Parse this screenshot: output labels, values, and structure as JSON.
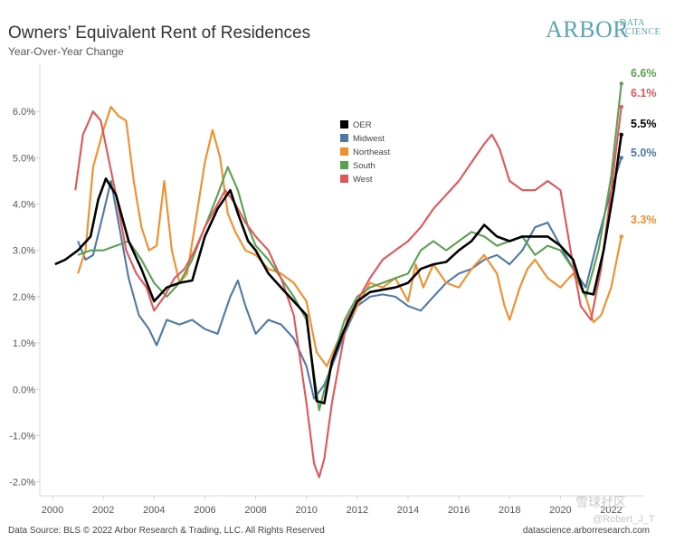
{
  "header": {
    "title": "Owners’ Equivalent Rent of Residences",
    "subtitle": "Year-Over-Year Change"
  },
  "logo": {
    "main": "ARBOR",
    "sub1": "DATA",
    "sub2": "SCIENCE"
  },
  "footer": {
    "source": "Data Source: BLS © 2022 Arbor Research & Trading, LLC. All Rights Reserved",
    "site": "datascience.arborresearch.com"
  },
  "watermark": {
    "line1": "雪球社区",
    "line2": "@Robert_J_T"
  },
  "colors": {
    "OER": "#000000",
    "Midwest": "#4e79a7",
    "Northeast": "#f28e2b",
    "South": "#59a14f",
    "West": "#e15759"
  },
  "chart_data": {
    "type": "line",
    "title": "Owners’ Equivalent Rent of Residences",
    "subtitle": "Year-Over-Year Change",
    "xlabel": "",
    "ylabel": "",
    "xlim": [
      1999.5,
      2023.3
    ],
    "ylim": [
      -2.3,
      7.0
    ],
    "x_ticks": [
      2000,
      2002,
      2004,
      2006,
      2008,
      2010,
      2012,
      2014,
      2016,
      2018,
      2020,
      2022
    ],
    "y_ticks": [
      -2.0,
      -1.0,
      0.0,
      1.0,
      2.0,
      3.0,
      4.0,
      5.0,
      6.0
    ],
    "y_tick_labels": [
      "-2.0%",
      "-1.0%",
      "0.0%",
      "1.0%",
      "2.0%",
      "3.0%",
      "4.0%",
      "5.0%",
      "6.0%"
    ],
    "legend": [
      "OER",
      "Midwest",
      "Northeast",
      "South",
      "West"
    ],
    "legend_position": "top-center",
    "end_labels": [
      {
        "series": "South",
        "text": "6.6%"
      },
      {
        "series": "West",
        "text": "6.1%"
      },
      {
        "series": "OER",
        "text": "5.5%"
      },
      {
        "series": "Midwest",
        "text": "5.0%"
      },
      {
        "series": "Northeast",
        "text": "3.3%"
      }
    ],
    "series": [
      {
        "name": "OER",
        "x": [
          2000.1,
          2000.5,
          2001.0,
          2001.5,
          2001.8,
          2002.1,
          2002.5,
          2003.0,
          2003.5,
          2004.0,
          2004.5,
          2005.0,
          2005.5,
          2006.0,
          2006.5,
          2007.0,
          2007.3,
          2007.7,
          2008.0,
          2008.5,
          2009.0,
          2009.5,
          2010.0,
          2010.4,
          2010.7,
          2011.0,
          2011.5,
          2012.0,
          2012.5,
          2013.0,
          2013.5,
          2014.0,
          2014.5,
          2015.0,
          2015.5,
          2016.0,
          2016.5,
          2017.0,
          2017.5,
          2018.0,
          2018.5,
          2019.0,
          2019.5,
          2020.0,
          2020.5,
          2020.9,
          2021.3,
          2021.7,
          2022.1,
          2022.4
        ],
        "values": [
          2.7,
          2.8,
          3.0,
          3.3,
          4.1,
          4.55,
          4.2,
          3.2,
          2.6,
          1.9,
          2.2,
          2.3,
          2.35,
          3.3,
          3.9,
          4.3,
          3.8,
          3.2,
          3.0,
          2.5,
          2.2,
          1.9,
          1.6,
          -0.25,
          -0.3,
          0.6,
          1.3,
          1.9,
          2.1,
          2.15,
          2.2,
          2.3,
          2.6,
          2.7,
          2.75,
          3.0,
          3.2,
          3.55,
          3.3,
          3.2,
          3.3,
          3.3,
          3.3,
          3.1,
          2.8,
          2.1,
          2.05,
          3.0,
          4.3,
          5.5
        ]
      },
      {
        "name": "Midwest",
        "x": [
          2001.0,
          2001.3,
          2001.6,
          2002.0,
          2002.3,
          2002.6,
          2003.0,
          2003.4,
          2003.8,
          2004.1,
          2004.5,
          2005.0,
          2005.5,
          2006.0,
          2006.5,
          2007.0,
          2007.3,
          2007.6,
          2008.0,
          2008.5,
          2009.0,
          2009.5,
          2010.0,
          2010.3,
          2010.7,
          2011.0,
          2011.5,
          2012.0,
          2012.5,
          2013.0,
          2013.5,
          2014.0,
          2014.5,
          2015.0,
          2015.5,
          2016.0,
          2016.5,
          2017.0,
          2017.5,
          2018.0,
          2018.5,
          2019.0,
          2019.5,
          2020.0,
          2020.5,
          2021.0,
          2021.5,
          2022.0,
          2022.4
        ],
        "values": [
          3.2,
          2.8,
          2.9,
          3.8,
          4.5,
          3.6,
          2.4,
          1.6,
          1.3,
          0.95,
          1.5,
          1.4,
          1.5,
          1.3,
          1.2,
          2.0,
          2.35,
          1.8,
          1.2,
          1.5,
          1.4,
          1.1,
          0.5,
          -0.2,
          0.1,
          0.5,
          1.2,
          1.8,
          2.0,
          2.05,
          2.0,
          1.8,
          1.7,
          2.0,
          2.3,
          2.5,
          2.6,
          2.8,
          2.9,
          2.7,
          3.0,
          3.5,
          3.6,
          3.1,
          2.6,
          2.2,
          3.3,
          4.3,
          5.0
        ]
      },
      {
        "name": "Northeast",
        "x": [
          2001.0,
          2001.3,
          2001.6,
          2002.0,
          2002.3,
          2002.6,
          2002.9,
          2003.2,
          2003.5,
          2003.8,
          2004.1,
          2004.4,
          2004.7,
          2005.0,
          2005.3,
          2005.6,
          2006.0,
          2006.3,
          2006.6,
          2006.9,
          2007.2,
          2007.6,
          2008.0,
          2008.5,
          2009.0,
          2009.5,
          2010.0,
          2010.4,
          2010.8,
          2011.2,
          2011.6,
          2012.0,
          2012.5,
          2013.0,
          2013.5,
          2014.0,
          2014.3,
          2014.6,
          2015.0,
          2015.5,
          2016.0,
          2016.5,
          2017.0,
          2017.5,
          2017.8,
          2018.0,
          2018.4,
          2018.7,
          2019.0,
          2019.5,
          2020.0,
          2020.5,
          2021.0,
          2021.3,
          2021.6,
          2022.0,
          2022.4
        ],
        "values": [
          2.5,
          3.0,
          4.8,
          5.6,
          6.1,
          5.9,
          5.8,
          4.5,
          3.5,
          3.0,
          3.1,
          4.5,
          3.0,
          2.3,
          2.5,
          3.5,
          4.9,
          5.6,
          5.0,
          3.8,
          3.4,
          3.0,
          2.9,
          2.6,
          2.5,
          2.3,
          1.9,
          0.8,
          0.5,
          1.0,
          1.4,
          1.8,
          2.3,
          2.2,
          2.4,
          1.9,
          2.7,
          2.2,
          2.7,
          2.3,
          2.2,
          2.6,
          2.9,
          2.5,
          1.8,
          1.5,
          2.2,
          2.6,
          2.8,
          2.4,
          2.2,
          2.5,
          2.0,
          1.45,
          1.6,
          2.2,
          3.3
        ]
      },
      {
        "name": "South",
        "x": [
          2001.0,
          2001.5,
          2002.0,
          2002.5,
          2003.0,
          2003.5,
          2004.0,
          2004.5,
          2005.0,
          2005.5,
          2006.0,
          2006.5,
          2006.9,
          2007.3,
          2007.7,
          2008.0,
          2008.5,
          2009.0,
          2009.5,
          2010.0,
          2010.5,
          2011.0,
          2011.5,
          2012.0,
          2012.5,
          2013.0,
          2013.5,
          2014.0,
          2014.5,
          2015.0,
          2015.5,
          2016.0,
          2016.5,
          2017.0,
          2017.5,
          2018.0,
          2018.5,
          2019.0,
          2019.5,
          2020.0,
          2020.5,
          2021.0,
          2021.5,
          2022.0,
          2022.4
        ],
        "values": [
          2.9,
          3.0,
          3.0,
          3.1,
          3.2,
          2.8,
          2.3,
          2.0,
          2.3,
          2.8,
          3.5,
          4.2,
          4.8,
          4.3,
          3.5,
          3.1,
          2.8,
          2.4,
          2.0,
          1.5,
          -0.45,
          0.6,
          1.5,
          2.0,
          2.2,
          2.3,
          2.4,
          2.5,
          3.0,
          3.2,
          3.0,
          3.2,
          3.4,
          3.3,
          3.1,
          3.2,
          3.3,
          2.9,
          3.1,
          3.0,
          2.6,
          2.0,
          3.0,
          4.6,
          6.6
        ]
      },
      {
        "name": "West",
        "x": [
          2000.9,
          2001.2,
          2001.6,
          2001.9,
          2002.2,
          2002.5,
          2002.9,
          2003.3,
          2003.7,
          2004.0,
          2004.4,
          2004.8,
          2005.2,
          2005.6,
          2006.0,
          2006.4,
          2006.8,
          2007.2,
          2007.6,
          2008.0,
          2008.5,
          2009.0,
          2009.5,
          2010.0,
          2010.3,
          2010.5,
          2010.7,
          2011.0,
          2011.3,
          2011.6,
          2012.0,
          2012.5,
          2013.0,
          2013.5,
          2014.0,
          2014.5,
          2015.0,
          2015.5,
          2016.0,
          2016.5,
          2017.0,
          2017.3,
          2017.6,
          2018.0,
          2018.5,
          2019.0,
          2019.5,
          2020.0,
          2020.4,
          2020.8,
          2021.2,
          2021.6,
          2022.0,
          2022.4
        ],
        "values": [
          4.3,
          5.5,
          6.0,
          5.8,
          5.0,
          4.2,
          3.0,
          2.5,
          2.2,
          1.7,
          2.0,
          2.4,
          2.6,
          3.0,
          3.5,
          3.9,
          4.3,
          4.0,
          3.6,
          3.3,
          3.0,
          2.4,
          1.6,
          -0.3,
          -1.6,
          -1.9,
          -1.5,
          -0.3,
          0.6,
          1.5,
          1.9,
          2.4,
          2.8,
          3.0,
          3.2,
          3.5,
          3.9,
          4.2,
          4.5,
          4.9,
          5.3,
          5.5,
          5.2,
          4.5,
          4.3,
          4.3,
          4.5,
          4.3,
          3.0,
          1.8,
          1.5,
          2.6,
          4.3,
          6.1
        ]
      }
    ]
  }
}
